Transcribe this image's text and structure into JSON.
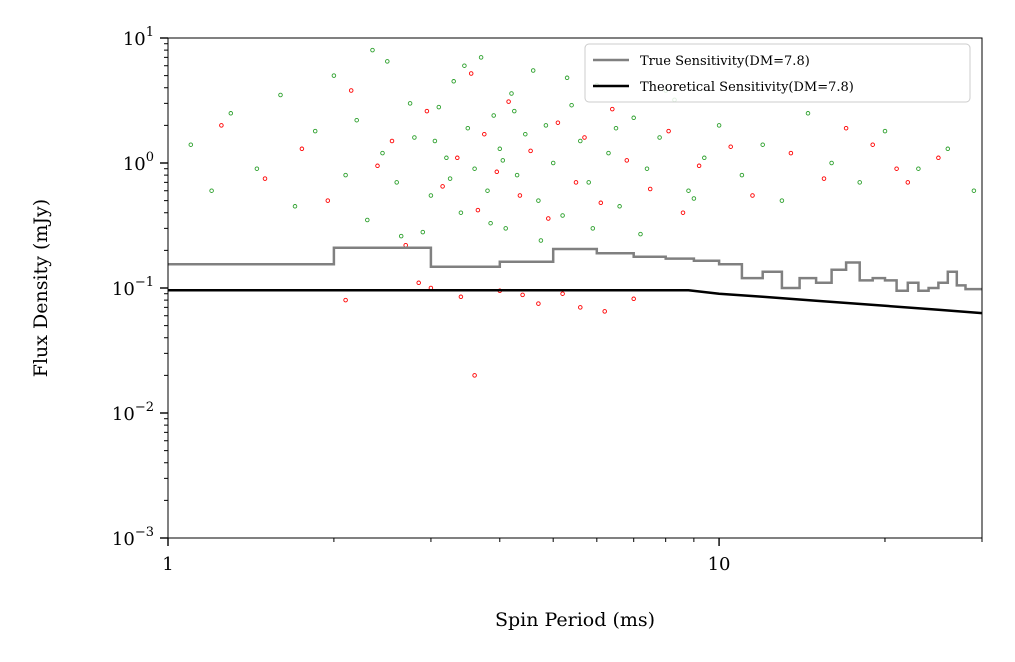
{
  "chart_data": {
    "type": "scatter",
    "xlabel": "Spin Period (ms)",
    "ylabel": "Flux Density (mJy)",
    "xscale": "log",
    "yscale": "log",
    "xlim": [
      1,
      30
    ],
    "ylim": [
      0.001,
      10
    ],
    "x_tick_labels": [
      "1",
      "10"
    ],
    "y_tick_labels": [
      {
        "base": "10",
        "exp": "−3",
        "value": 0.001
      },
      {
        "base": "10",
        "exp": "−2",
        "value": 0.01
      },
      {
        "base": "10",
        "exp": "−1",
        "value": 0.1
      },
      {
        "base": "10",
        "exp": "0",
        "value": 1
      },
      {
        "base": "10",
        "exp": "1",
        "value": 10
      }
    ],
    "legend_position": "top-right",
    "series": [
      {
        "name": "True Sensitivity(DM=7.8)",
        "kind": "step",
        "color": "#808080",
        "x": [
          1,
          2,
          3,
          4,
          5,
          6,
          7,
          8,
          9,
          10,
          11,
          12,
          13,
          14,
          15,
          16,
          17,
          18,
          19,
          20,
          21,
          22,
          23,
          24,
          25,
          26,
          27,
          28,
          29,
          30
        ],
        "y": [
          0.155,
          0.21,
          0.148,
          0.162,
          0.205,
          0.19,
          0.178,
          0.172,
          0.165,
          0.155,
          0.12,
          0.135,
          0.1,
          0.12,
          0.11,
          0.14,
          0.16,
          0.115,
          0.12,
          0.115,
          0.095,
          0.11,
          0.095,
          0.1,
          0.11,
          0.135,
          0.105,
          0.098,
          0.098,
          0.098
        ]
      },
      {
        "name": "Theoretical Sensitivity(DM=7.8)",
        "kind": "line",
        "color": "#000000",
        "x": [
          1,
          2,
          4,
          8.8,
          10,
          12,
          15,
          20,
          25,
          30
        ],
        "y": [
          0.096,
          0.096,
          0.096,
          0.096,
          0.09,
          0.085,
          0.079,
          0.072,
          0.067,
          0.063
        ]
      },
      {
        "kind": "scatter",
        "color": "#2ca02c",
        "x": [
          1.1,
          1.2,
          1.3,
          1.45,
          1.6,
          1.7,
          1.85,
          2.0,
          2.1,
          2.2,
          2.3,
          2.45,
          2.5,
          2.6,
          2.75,
          2.8,
          2.9,
          3.0,
          3.1,
          3.2,
          3.3,
          3.4,
          3.5,
          3.6,
          3.7,
          3.8,
          3.9,
          4.0,
          4.1,
          4.2,
          4.3,
          4.45,
          4.6,
          4.7,
          4.85,
          5.0,
          5.2,
          5.4,
          5.6,
          5.8,
          6.0,
          6.3,
          6.6,
          7.0,
          7.4,
          7.8,
          8.3,
          8.8,
          9.4,
          10.0,
          11.0,
          12.0,
          13.0,
          14.5,
          16.0,
          18.0,
          20.0,
          23.0,
          26.0,
          29.0,
          2.35,
          2.65,
          3.05,
          3.45,
          3.85,
          4.25,
          4.75,
          5.3,
          5.9,
          6.5,
          7.2,
          8.0,
          9.0,
          3.25,
          4.05
        ],
        "y": [
          1.4,
          0.6,
          2.5,
          0.9,
          3.5,
          0.45,
          1.8,
          5.0,
          0.8,
          2.2,
          0.35,
          1.2,
          6.5,
          0.7,
          3.0,
          1.6,
          0.28,
          0.55,
          2.8,
          1.1,
          4.5,
          0.4,
          1.9,
          0.9,
          7.0,
          0.6,
          2.4,
          1.3,
          0.3,
          3.6,
          0.8,
          1.7,
          5.5,
          0.5,
          2.0,
          1.0,
          0.38,
          2.9,
          1.5,
          0.7,
          4.2,
          1.2,
          0.45,
          2.3,
          0.9,
          1.6,
          3.2,
          0.6,
          1.1,
          2.0,
          0.8,
          1.4,
          0.5,
          2.5,
          1.0,
          0.7,
          1.8,
          0.9,
          1.3,
          0.6,
          8.0,
          0.26,
          1.5,
          6.0,
          0.33,
          2.6,
          0.24,
          4.8,
          0.3,
          1.9,
          0.27,
          3.8,
          0.52,
          0.75,
          1.05
        ]
      },
      {
        "kind": "scatter",
        "color": "#ff0000",
        "x": [
          1.25,
          1.5,
          1.75,
          1.95,
          2.15,
          2.4,
          2.55,
          2.7,
          2.95,
          3.15,
          3.35,
          3.55,
          3.65,
          3.75,
          3.95,
          4.15,
          4.35,
          4.55,
          4.9,
          5.1,
          5.5,
          5.7,
          6.1,
          6.4,
          6.8,
          7.5,
          8.1,
          8.6,
          9.2,
          10.5,
          11.5,
          13.5,
          15.5,
          17.0,
          19.0,
          22.0,
          25.0,
          2.1,
          3.0,
          3.4,
          4.0,
          4.4,
          5.2,
          6.2,
          3.6,
          2.85,
          4.7,
          5.6,
          7.0,
          21.0
        ],
        "y": [
          2.0,
          0.75,
          1.3,
          0.5,
          3.8,
          0.95,
          1.5,
          0.22,
          2.6,
          0.65,
          1.1,
          5.2,
          0.42,
          1.7,
          0.85,
          3.1,
          0.55,
          1.25,
          0.36,
          2.1,
          0.7,
          1.6,
          0.48,
          2.7,
          1.05,
          0.62,
          1.8,
          0.4,
          0.95,
          1.35,
          0.55,
          1.2,
          0.75,
          1.9,
          1.4,
          0.7,
          1.1,
          0.08,
          0.1,
          0.085,
          0.095,
          0.088,
          0.09,
          0.065,
          0.02,
          0.11,
          0.075,
          0.07,
          0.082,
          0.9
        ]
      }
    ]
  }
}
